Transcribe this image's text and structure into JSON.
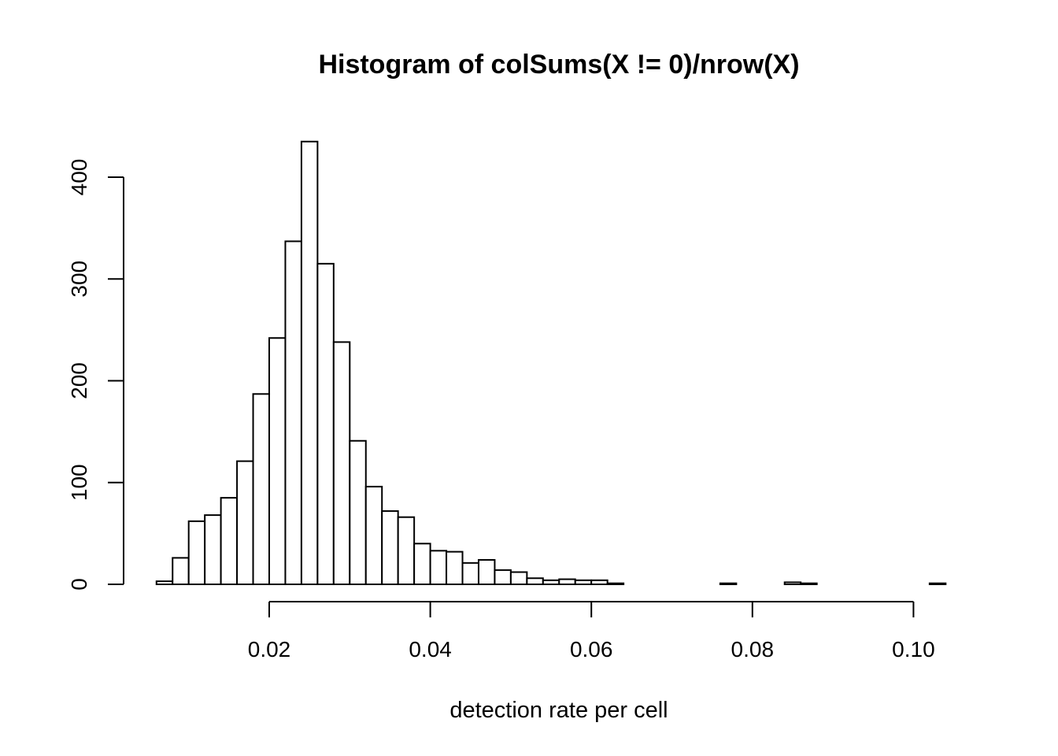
{
  "chart_data": {
    "type": "bar",
    "title": "Histogram of colSums(X != 0)/nrow(X)",
    "xlabel": "detection rate per cell",
    "ylabel": "",
    "bin_width": 0.002,
    "bin_start": 0.006,
    "xlim": [
      0.006,
      0.106
    ],
    "ylim": [
      0,
      440
    ],
    "x_ticks": [
      0.02,
      0.04,
      0.06,
      0.08,
      0.1
    ],
    "x_tick_labels": [
      "0.02",
      "0.04",
      "0.06",
      "0.08",
      "0.10"
    ],
    "y_ticks": [
      0,
      100,
      200,
      300,
      400
    ],
    "y_tick_labels": [
      "0",
      "100",
      "200",
      "300",
      "400"
    ],
    "values": [
      3,
      26,
      62,
      68,
      85,
      121,
      187,
      242,
      337,
      435,
      315,
      238,
      141,
      96,
      72,
      66,
      40,
      33,
      32,
      21,
      24,
      14,
      12,
      6,
      4,
      5,
      4,
      4,
      1,
      0,
      0,
      0,
      0,
      0,
      0,
      1,
      0,
      0,
      0,
      2,
      1,
      0,
      0,
      0,
      0,
      0,
      0,
      0,
      1,
      0
    ]
  }
}
